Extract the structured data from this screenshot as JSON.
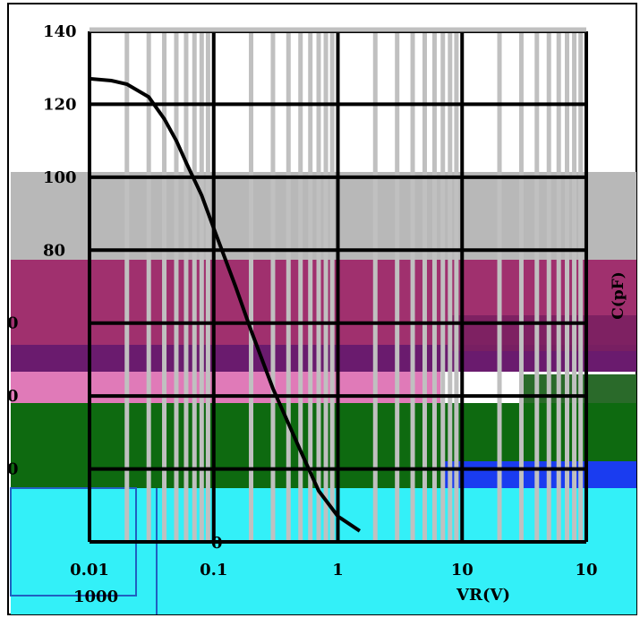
{
  "chart_data": {
    "type": "line",
    "title": "",
    "xlabel": "VR(V)",
    "ylabel": "C(pF)",
    "xscale": "log",
    "xlim": [
      0.01,
      100
    ],
    "ylim": [
      0,
      140
    ],
    "x_ticks": [
      "0.01",
      "0.1",
      "1",
      "10",
      "10"
    ],
    "y_ticks": [
      "140",
      "120",
      "100",
      "80",
      "0",
      "0",
      "0",
      "0"
    ],
    "grid": true,
    "series": [
      {
        "x": [
          0.01,
          0.015,
          0.02,
          0.03,
          0.04,
          0.05,
          0.06,
          0.08,
          0.1,
          0.15,
          0.2,
          0.3,
          0.5,
          0.7,
          1.0,
          1.5
        ],
        "y": [
          127,
          126.5,
          125.5,
          122,
          116,
          110,
          104,
          95,
          86,
          70,
          58,
          42,
          25,
          14,
          7,
          3
        ]
      }
    ]
  },
  "fragments": {
    "left_axis_label": "0",
    "bottom_left_label": "1000",
    "zero_label": "0"
  },
  "colors": {
    "grid_dark": "#000000",
    "grid_light": "#c0c0c0",
    "band_grey": "#b8b8b8",
    "band_magenta": "#a0306e",
    "band_purple": "#6a1b6e",
    "band_pink": "#e07ab8",
    "band_green": "#0e6a10",
    "band_blue": "#1a3cf0",
    "band_cyan": "#33f0f8",
    "curve": "#000000"
  }
}
